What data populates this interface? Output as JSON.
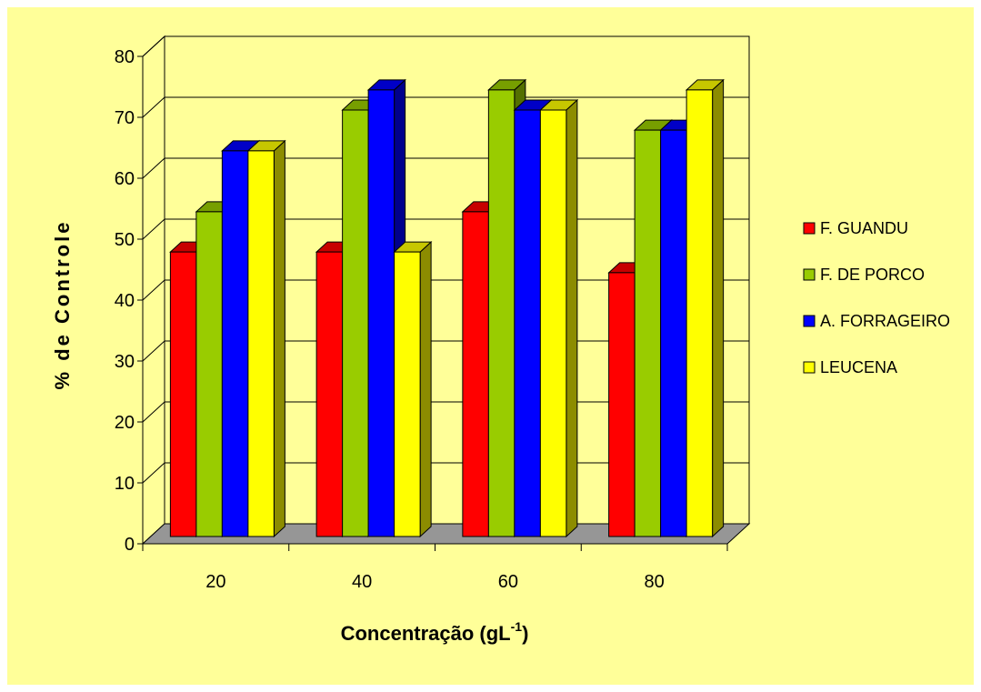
{
  "chart_data": {
    "type": "bar",
    "title": "",
    "xlabel": "Concentração (gL",
    "xlabel_superscript": "-1",
    "xlabel_suffix": ")",
    "ylabel": "% de Controle",
    "categories": [
      "20",
      "40",
      "60",
      "80"
    ],
    "ylim": [
      0,
      80
    ],
    "yticks": [
      "0",
      "10",
      "20",
      "30",
      "40",
      "50",
      "60",
      "70",
      "80"
    ],
    "grid": true,
    "legend_position": "right",
    "three_d": true,
    "series": [
      {
        "name": "F. GUANDU",
        "color": "#ff0000",
        "values": [
          46.7,
          46.7,
          53.3,
          43.3
        ]
      },
      {
        "name": "F. DE PORCO",
        "color": "#99cc00",
        "values": [
          53.3,
          70.0,
          73.3,
          66.7
        ]
      },
      {
        "name": "A. FORRAGEIRO",
        "color": "#0000ff",
        "values": [
          63.3,
          73.3,
          70.0,
          66.7
        ]
      },
      {
        "name": "LEUCENA",
        "color": "#ffff00",
        "values": [
          63.3,
          46.7,
          70.0,
          73.3
        ]
      }
    ],
    "background_color": "#ffff99",
    "floor_color": "#969696"
  }
}
